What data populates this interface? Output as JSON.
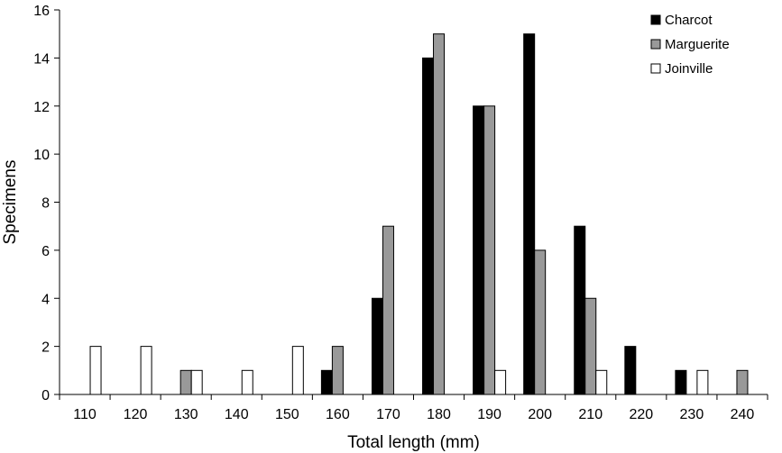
{
  "chart_data": {
    "type": "bar",
    "xlabel": "Total length (mm)",
    "ylabel": "Specimens",
    "ylim": [
      0,
      16
    ],
    "yticks": [
      0,
      2,
      4,
      6,
      8,
      10,
      12,
      14,
      16
    ],
    "categories": [
      "110",
      "120",
      "130",
      "140",
      "150",
      "160",
      "170",
      "180",
      "190",
      "200",
      "210",
      "220",
      "230",
      "240"
    ],
    "series": [
      {
        "name": "Charcot",
        "color": "#000000",
        "values": [
          0,
          0,
          0,
          0,
          0,
          1,
          4,
          14,
          12,
          15,
          7,
          2,
          1,
          0
        ]
      },
      {
        "name": "Marguerite",
        "color": "#999999",
        "values": [
          0,
          0,
          1,
          0,
          0,
          2,
          7,
          15,
          12,
          6,
          4,
          0,
          0,
          1
        ]
      },
      {
        "name": "Joinville",
        "color": "#ffffff",
        "values": [
          2,
          2,
          1,
          1,
          2,
          0,
          0,
          0,
          1,
          0,
          1,
          0,
          1,
          0
        ]
      }
    ],
    "legend_position": "top-right",
    "grid": false
  }
}
